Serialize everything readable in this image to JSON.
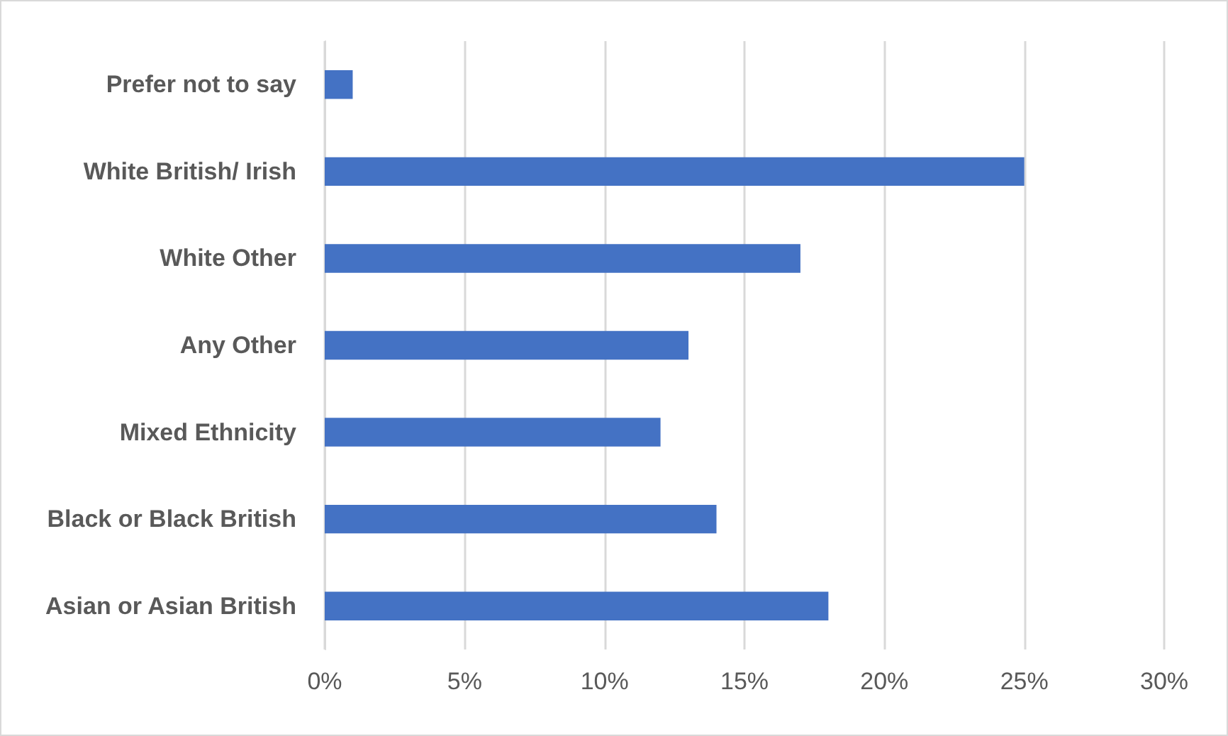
{
  "chart_data": {
    "type": "bar",
    "orientation": "horizontal",
    "categories": [
      "Prefer not to say",
      "White British/ Irish",
      "White Other",
      "Any Other",
      "Mixed Ethnicity",
      "Black or Black British",
      "Asian or Asian British"
    ],
    "values": [
      1,
      25,
      17,
      13,
      12,
      14,
      18
    ],
    "color": "#4472c4",
    "xlim": [
      0,
      30
    ],
    "xticks": [
      {
        "value": 0,
        "label": "0%"
      },
      {
        "value": 5,
        "label": "5%"
      },
      {
        "value": 10,
        "label": "10%"
      },
      {
        "value": 15,
        "label": "15%"
      },
      {
        "value": 20,
        "label": "20%"
      },
      {
        "value": 25,
        "label": "25%"
      },
      {
        "value": 30,
        "label": "30%"
      }
    ],
    "grid": "x"
  }
}
